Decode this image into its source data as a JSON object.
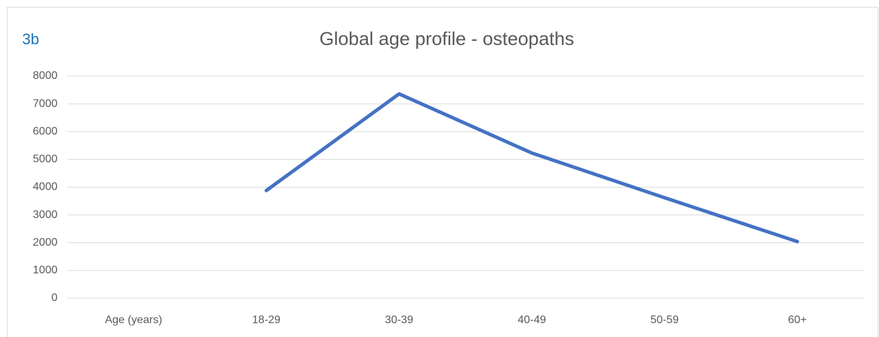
{
  "tag": "3b",
  "chart_data": {
    "type": "line",
    "title": "Global age profile - osteopaths",
    "categories": [
      "Age (years)",
      "18-29",
      "30-39",
      "40-49",
      "50-59",
      "60+"
    ],
    "series": [
      {
        "name": "Osteopaths",
        "color": "#4472c4",
        "values": [
          null,
          3880,
          7360,
          5230,
          3620,
          2040
        ]
      }
    ],
    "ylim": [
      0,
      8000
    ],
    "yticks": [
      0,
      1000,
      2000,
      3000,
      4000,
      5000,
      6000,
      7000,
      8000
    ],
    "grid": true
  }
}
